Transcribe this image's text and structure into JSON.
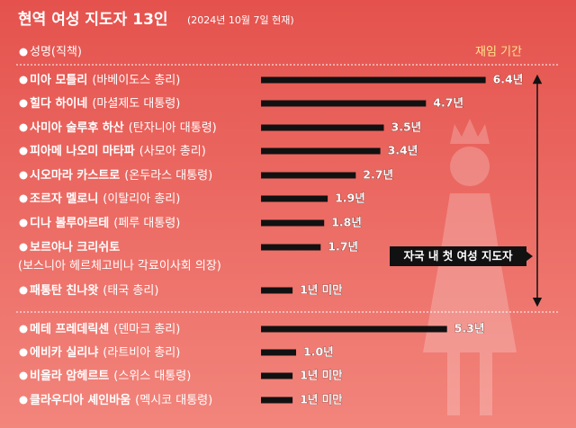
{
  "chart_data": {
    "type": "bar",
    "orientation": "horizontal",
    "title": "현역 여성 지도자 13인",
    "subtitle": "(2024년 10월 7일 현재)",
    "column_label": "성명(직책)",
    "value_axis_label": "재임 기간",
    "categories": [
      "미아 모틀리",
      "힐다 하이네",
      "사미아 술루후 하산",
      "피아메 나오미 마타파",
      "시오마라 카스트로",
      "조르자 멜로니",
      "디나 볼루아르테",
      "보르야나 크리쉬토",
      "패통탄 친나왓",
      "메테 프레데릭센",
      "에비카 실리냐",
      "비올라 암헤르트",
      "클라우디아 셰인바움"
    ],
    "roles": [
      "(바베이도스 총리)",
      "(마셜제도 대통령)",
      "(탄자니아 대통령)",
      "(사모아 총리)",
      "(온두라스 대통령)",
      "(이탈리아 총리)",
      "(페루 대통령)",
      "(보스니아 헤르체고비나 각료이사회 의장)",
      "(태국 총리)",
      "(덴마크 총리)",
      "(라트비아 총리)",
      "(스위스 대통령)",
      "(멕시코 대통령)"
    ],
    "values": [
      6.4,
      4.7,
      3.5,
      3.4,
      2.7,
      1.9,
      1.8,
      1.7,
      0.9,
      5.3,
      1.0,
      0.9,
      0.9
    ],
    "value_labels": [
      "6.4년",
      "4.7년",
      "3.5년",
      "3.4년",
      "2.7년",
      "1.9년",
      "1.8년",
      "1.7년",
      "1년 미만",
      "5.3년",
      "1.0년",
      "1년 미만",
      "1년 미만"
    ],
    "color": "#111111",
    "annotation": "자국 내 첫 여성 지도자"
  }
}
